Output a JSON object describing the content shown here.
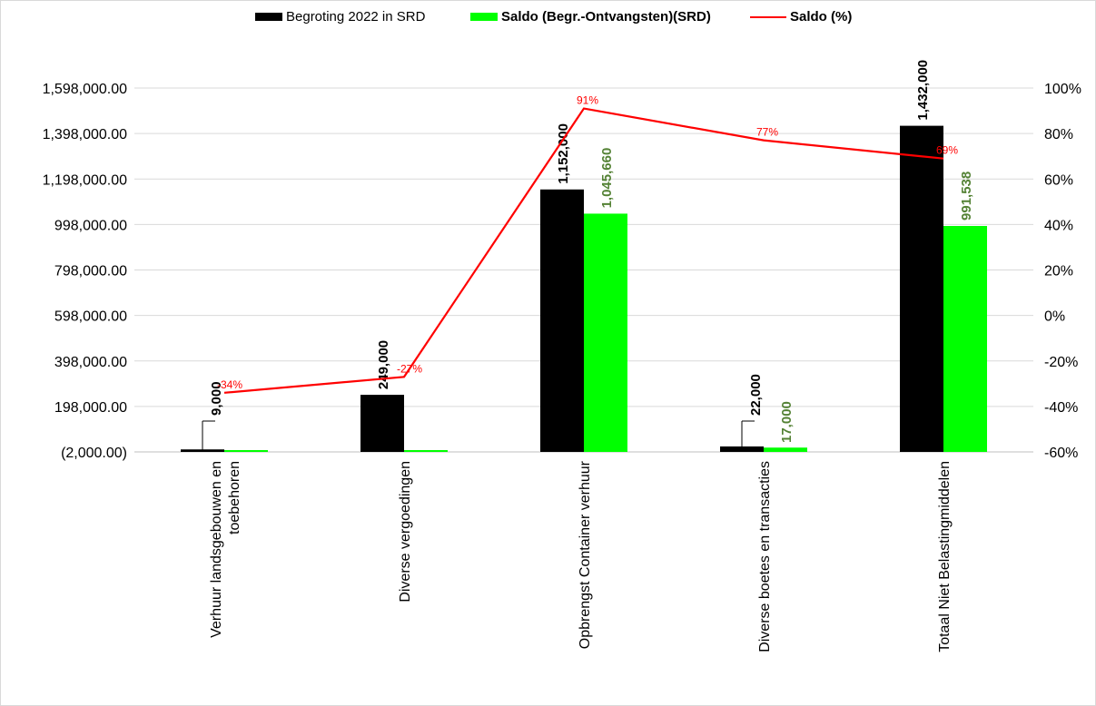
{
  "legend": {
    "items": [
      {
        "label": "Begroting 2022 in SRD",
        "color": "#000000",
        "kind": "bar"
      },
      {
        "label": "Saldo (Begr.-Ontvangsten)(SRD)",
        "color": "#00ff00",
        "kind": "bar"
      },
      {
        "label": "Saldo (%)",
        "color": "#ff0000",
        "kind": "line"
      }
    ]
  },
  "chart_data": {
    "type": "bar",
    "categories": [
      [
        "Verhuur landsgebouwen en",
        "toebehoren"
      ],
      [
        "Diverse vergoedingen"
      ],
      [
        "Opbrengst Container verhuur"
      ],
      [
        "Diverse boetes en transacties"
      ],
      [
        "Totaal Niet Belastingmiddelen"
      ]
    ],
    "series": [
      {
        "name": "Begroting 2022 in SRD",
        "color": "#000000",
        "values": [
          9000,
          249000,
          1152000,
          22000,
          1432000
        ],
        "labels": [
          "9,000",
          "249,000",
          "1,152,000",
          "22,000",
          "1,432,000"
        ],
        "label_color": "#000000"
      },
      {
        "name": "Saldo (Begr.-Ontvangsten)(SRD)",
        "color": "#00ff00",
        "values": [
          -1000,
          -1000,
          1045660,
          17000,
          991538
        ],
        "labels": [
          "",
          "",
          "1,045,660",
          "17,000",
          "991,538"
        ],
        "label_color": "#548235"
      },
      {
        "name": "Saldo (%)",
        "color": "#ff0000",
        "axis": "right",
        "values": [
          -34,
          -27,
          91,
          77,
          69
        ],
        "labels": [
          "-34%",
          "-27%",
          "91%",
          "77%",
          "69%"
        ],
        "label_color": "#ff0000"
      }
    ],
    "y_left": {
      "ylim": [
        -2000,
        1598000
      ],
      "ticks": [
        -2000,
        198000,
        398000,
        598000,
        798000,
        998000,
        1198000,
        1398000,
        1598000
      ],
      "tick_labels": [
        "(2,000.00)",
        "198,000.00",
        "398,000.00",
        "598,000.00",
        "798,000.00",
        "998,000.00",
        "1,198,000.00",
        "1,398,000.00",
        "1,598,000.00"
      ]
    },
    "y_right": {
      "ylim": [
        -60,
        100
      ],
      "ticks": [
        -60,
        -40,
        -20,
        0,
        20,
        40,
        60,
        80,
        100
      ],
      "tick_labels": [
        "-60%",
        "-40%",
        "-20%",
        "0%",
        "20%",
        "40%",
        "60%",
        "80%",
        "100%"
      ]
    },
    "grid": true,
    "legend_position": "top"
  }
}
